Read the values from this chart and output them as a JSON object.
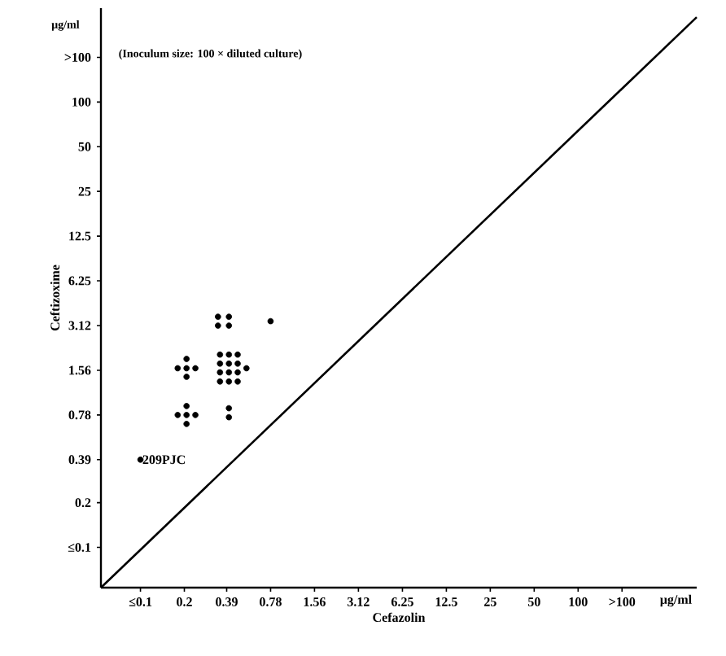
{
  "chart_data": {
    "type": "scatter",
    "xlabel": "Cefazolin",
    "ylabel": "Ceftizoxime",
    "log": "xy",
    "xlim": [
      0.0536,
      650
    ],
    "ylim": [
      0.0536,
      429
    ],
    "xticks": [
      {
        "value": 0.1,
        "label": "≤0.1"
      },
      0.2,
      0.39,
      0.78,
      1.56,
      3.12,
      6.25,
      12.5,
      25,
      50,
      100,
      {
        "value": 200,
        "label": ">100"
      }
    ],
    "yticks": [
      {
        "value": 0.1,
        "label": "≤0.1"
      },
      0.2,
      0.39,
      0.78,
      1.56,
      3.12,
      6.25,
      12.5,
      25,
      50,
      100,
      {
        "value": 200,
        "label": ">100"
      }
    ],
    "grid": false,
    "series": [
      {
        "color": "#000000",
        "marker": "circle",
        "x": [
          0.1,
          0.18,
          0.207,
          0.207,
          0.207,
          0.238,
          0.18,
          0.207,
          0.207,
          0.207,
          0.238,
          0.34,
          0.34,
          0.404,
          0.404,
          0.351,
          0.351,
          0.351,
          0.351,
          0.404,
          0.404,
          0.404,
          0.404,
          0.464,
          0.464,
          0.464,
          0.464,
          0.533,
          0.404,
          0.404,
          0.78
        ],
        "values": [
          0.39,
          1.61,
          1.86,
          1.61,
          1.41,
          1.61,
          0.78,
          0.896,
          0.78,
          0.679,
          0.78,
          3.58,
          3.12,
          3.58,
          3.12,
          1.99,
          1.73,
          1.51,
          1.31,
          1.99,
          1.73,
          1.51,
          1.31,
          1.99,
          1.73,
          1.51,
          1.31,
          1.61,
          0.866,
          0.753,
          3.34
        ]
      },
      {
        "type": "line",
        "marker": "none",
        "color": "#000000",
        "x": [
          0.0536,
          650
        ],
        "values": [
          0.0536,
          373
        ]
      }
    ],
    "annotations": [
      {
        "text": "209PJC",
        "x": 0.1,
        "y": 0.39
      },
      "(Inoculum size: 100 × diluted culture)",
      "μg/ml",
      "μg/ml"
    ]
  }
}
